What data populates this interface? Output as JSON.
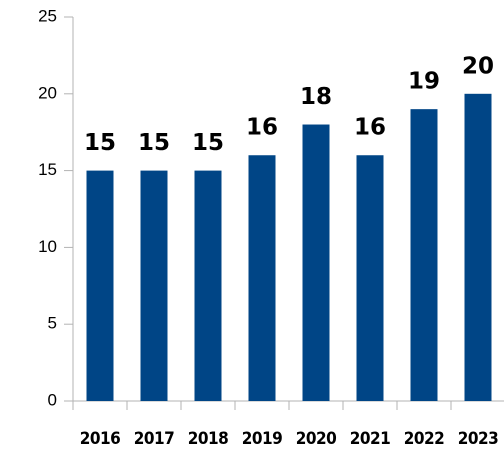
{
  "chart_data": {
    "type": "bar",
    "categories": [
      "2016",
      "2017",
      "2018",
      "2019",
      "2020",
      "2021",
      "2022",
      "2023"
    ],
    "values": [
      15,
      15,
      15,
      16,
      18,
      16,
      19,
      20
    ],
    "color": "#004586",
    "ylim": [
      0,
      25
    ],
    "yticks": [
      0,
      5,
      10,
      15,
      20,
      25
    ],
    "data_labels": true
  }
}
